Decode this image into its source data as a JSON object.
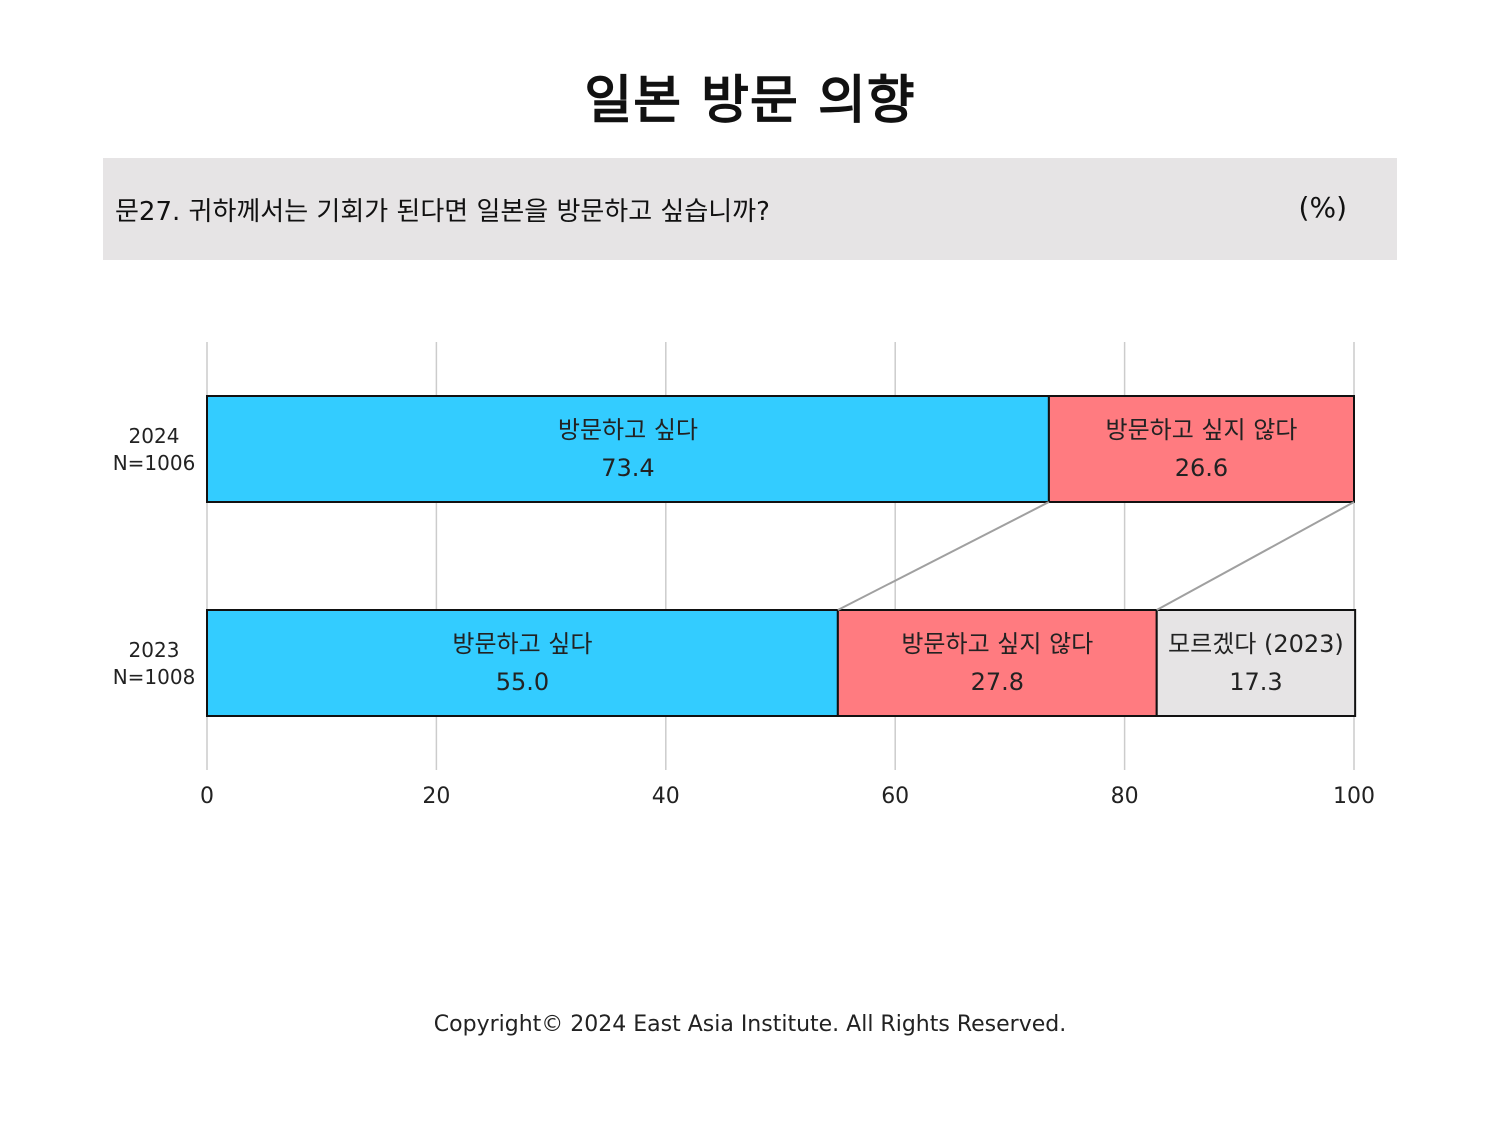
{
  "title": "일본 방문 의향",
  "question": {
    "text": "문27. 귀하께서는 기회가 된다면 일본을 방문하고 싶습니까?",
    "unit": "(%)"
  },
  "chart_data": {
    "type": "bar",
    "orientation": "horizontal",
    "stacked": true,
    "categories": [
      {
        "year": "2024",
        "n": "N=1006"
      },
      {
        "year": "2023",
        "n": "N=1008"
      }
    ],
    "series": [
      {
        "name": "방문하고 싶다",
        "color": "#33ccff",
        "values": [
          "73.4",
          "55.0"
        ]
      },
      {
        "name": "방문하고 싶지 않다",
        "color": "#ff7b80",
        "values": [
          "26.6",
          "27.8"
        ]
      },
      {
        "name": "모르겠다 (2023)",
        "color": "#e6e4e5",
        "values": [
          null,
          "17.3"
        ]
      }
    ],
    "xlim": [
      0,
      100
    ],
    "xticks": [
      "0",
      "20",
      "40",
      "60",
      "80",
      "100"
    ],
    "grid": "vertical",
    "connector_lines": true
  },
  "footer": {
    "copyright": "Copyright© 2024 East Asia Institute. All Rights Reserved."
  }
}
